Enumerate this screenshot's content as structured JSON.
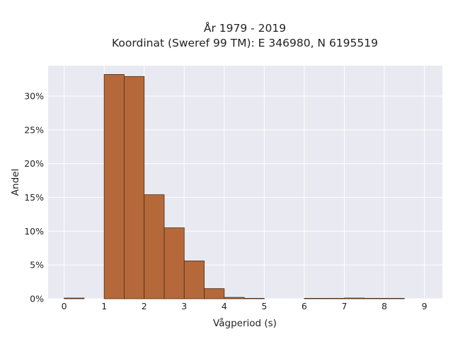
{
  "chart_data": {
    "type": "bar",
    "title": "År 1979 - 2019",
    "subtitle": "Koordinat (Sweref 99 TM): E 346980, N 6195519",
    "xlabel": "Vågperiod (s)",
    "ylabel": "Andel",
    "xlim": [
      -0.4,
      9.45
    ],
    "ylim": [
      0,
      0.345
    ],
    "grid": true,
    "x_ticks": [
      0,
      1,
      2,
      3,
      4,
      5,
      6,
      7,
      8,
      9
    ],
    "x_tick_labels": [
      "0",
      "1",
      "2",
      "3",
      "4",
      "5",
      "6",
      "7",
      "8",
      "9"
    ],
    "y_ticks": [
      0,
      0.05,
      0.1,
      0.15,
      0.2,
      0.25,
      0.3
    ],
    "y_tick_labels": [
      "0%",
      "5%",
      "10%",
      "15%",
      "20%",
      "25%",
      "30%"
    ],
    "bin_width": 0.5,
    "bin_starts": [
      0,
      1,
      1.5,
      2,
      2.5,
      3,
      3.5,
      4,
      4.5,
      6,
      6.5,
      7,
      7.5,
      8
    ],
    "values": [
      0.001,
      0.332,
      0.329,
      0.154,
      0.105,
      0.056,
      0.015,
      0.002,
      0.0005,
      0.0003,
      0.0003,
      0.001,
      0.0005,
      0.0003
    ],
    "colors": {
      "bar_fill": "#b5693a",
      "bar_stroke": "#4a2a14",
      "plot_bg": "#e9e9f1",
      "grid": "#ffffff"
    }
  }
}
